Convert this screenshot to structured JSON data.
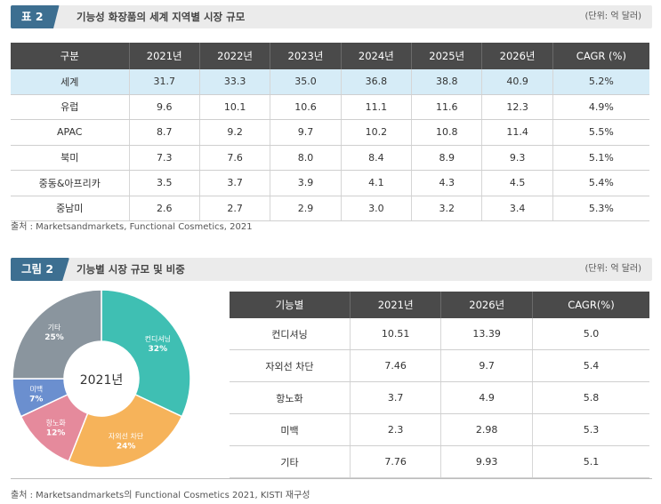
{
  "section1": {
    "tag": "표 2",
    "title": "기능성 화장품의 세계 지역별 시장 규모",
    "unit": "(단위: 억 달러)",
    "headers": [
      "구분",
      "2021년",
      "2022년",
      "2023년",
      "2024년",
      "2025년",
      "2026년",
      "CAGR (%)"
    ],
    "rows": [
      [
        "세계",
        "31.7",
        "33.3",
        "35.0",
        "36.8",
        "38.8",
        "40.9",
        "5.2%"
      ],
      [
        "유럽",
        "9.6",
        "10.1",
        "10.6",
        "11.1",
        "11.6",
        "12.3",
        "4.9%"
      ],
      [
        "APAC",
        "8.7",
        "9.2",
        "9.7",
        "10.2",
        "10.8",
        "11.4",
        "5.5%"
      ],
      [
        "북미",
        "7.3",
        "7.6",
        "8.0",
        "8.4",
        "8.9",
        "9.3",
        "5.1%"
      ],
      [
        "중동&아프리카",
        "3.5",
        "3.7",
        "3.9",
        "4.1",
        "4.3",
        "4.5",
        "5.4%"
      ],
      [
        "중남미",
        "2.6",
        "2.7",
        "2.9",
        "3.0",
        "3.2",
        "3.4",
        "5.3%"
      ]
    ],
    "source": "출처 : Marketsandmarkets, Functional Cosmetics, 2021"
  },
  "section2": {
    "tag": "그림 2",
    "title": "기능별 시장 규모 및 비중",
    "unit": "(단위: 억 달러)",
    "headers": [
      "기능별",
      "2021년",
      "2026년",
      "CAGR(%)"
    ],
    "rows": [
      [
        "컨디셔닝",
        "10.51",
        "13.39",
        "5.0"
      ],
      [
        "자외선 차단",
        "7.46",
        "9.7",
        "5.4"
      ],
      [
        "항노화",
        "3.7",
        "4.9",
        "5.8"
      ],
      [
        "미백",
        "2.3",
        "2.98",
        "5.3"
      ],
      [
        "기타",
        "7.76",
        "9.93",
        "5.1"
      ]
    ],
    "source": "출처 : Marketsandmarkets의 Functional Cosmetics 2021, KISTI 재구성"
  },
  "chart_data": {
    "type": "pie",
    "center_label": "2021년",
    "slices": [
      {
        "label": "컨디셔닝",
        "value": 32,
        "value_label": "32%",
        "color": "#3fbfb3"
      },
      {
        "label": "자외선 차단",
        "value": 24,
        "value_label": "24%",
        "color": "#f6b35a"
      },
      {
        "label": "항노화",
        "value": 12,
        "value_label": "12%",
        "color": "#e58a9c"
      },
      {
        "label": "미백",
        "value": 7,
        "value_label": "7%",
        "color": "#6b8fcf"
      },
      {
        "label": "기타",
        "value": 25,
        "value_label": "25%",
        "color": "#8a959e"
      }
    ]
  },
  "colors": {
    "header_bg": "#4a4a4a",
    "tag_bg": "#3d6f91",
    "highlight_row": "#d6ecf7"
  }
}
